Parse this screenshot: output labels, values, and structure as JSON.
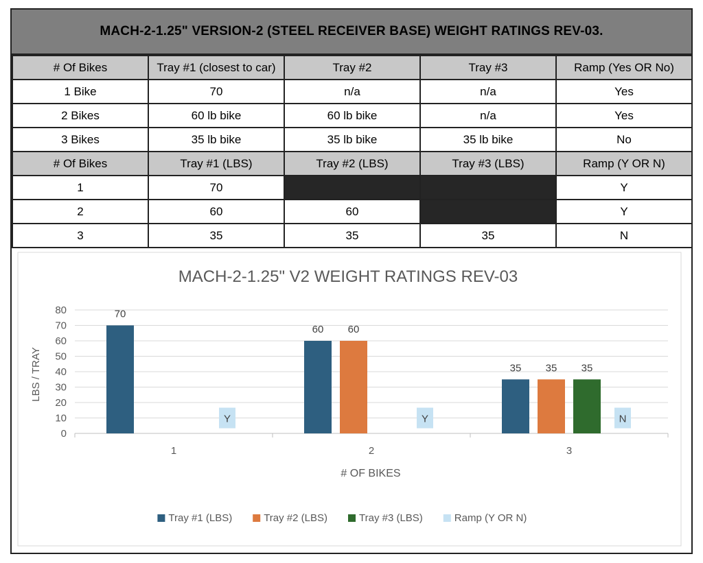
{
  "title": "MACH-2-1.25\" VERSION-2 (STEEL RECEIVER BASE)  WEIGHT RATINGS REV-03.",
  "table1": {
    "headers": [
      "# Of Bikes",
      "Tray #1 (closest to car)",
      "Tray #2",
      "Tray #3",
      "Ramp (Yes OR No)"
    ],
    "rows": [
      [
        "1 Bike",
        "70",
        "n/a",
        "n/a",
        "Yes"
      ],
      [
        "2 Bikes",
        "60 lb bike",
        "60 lb bike",
        "n/a",
        "Yes"
      ],
      [
        "3 Bikes",
        "35 lb bike",
        "35 lb bike",
        "35 lb bike",
        "No"
      ]
    ]
  },
  "table2": {
    "headers": [
      "# Of Bikes",
      "Tray #1 (LBS)",
      "Tray #2 (LBS)",
      "Tray #3 (LBS)",
      "Ramp (Y OR N)"
    ],
    "rows": [
      [
        "1",
        "70",
        "",
        "",
        "Y"
      ],
      [
        "2",
        "60",
        "60",
        "",
        "Y"
      ],
      [
        "3",
        "35",
        "35",
        "35",
        "N"
      ]
    ]
  },
  "chart_data": {
    "type": "bar",
    "title": "MACH-2-1.25\" V2 WEIGHT RATINGS REV-03",
    "xlabel": "# OF BIKES",
    "ylabel": "LBS / TRAY",
    "categories": [
      "1",
      "2",
      "3"
    ],
    "ylim": [
      0,
      80
    ],
    "yticks": [
      0,
      10,
      20,
      30,
      40,
      50,
      60,
      70,
      80
    ],
    "grid": true,
    "legend_position": "bottom",
    "series": [
      {
        "name": "Tray #1 (LBS)",
        "color": "#2e5f80",
        "values": [
          70,
          60,
          35
        ],
        "labels": [
          "70",
          "60",
          "35"
        ]
      },
      {
        "name": "Tray #2 (LBS)",
        "color": "#dd7a3f",
        "values": [
          null,
          60,
          35
        ],
        "labels": [
          "",
          "60",
          "35"
        ]
      },
      {
        "name": "Tray #3 (LBS)",
        "color": "#2f6b2d",
        "values": [
          null,
          null,
          35
        ],
        "labels": [
          "",
          "",
          "35"
        ]
      },
      {
        "name": "Ramp (Y OR N)",
        "color": "#c6e2f3",
        "values": [
          10,
          10,
          10
        ],
        "labels": [
          "Y",
          "Y",
          "N"
        ]
      }
    ]
  }
}
